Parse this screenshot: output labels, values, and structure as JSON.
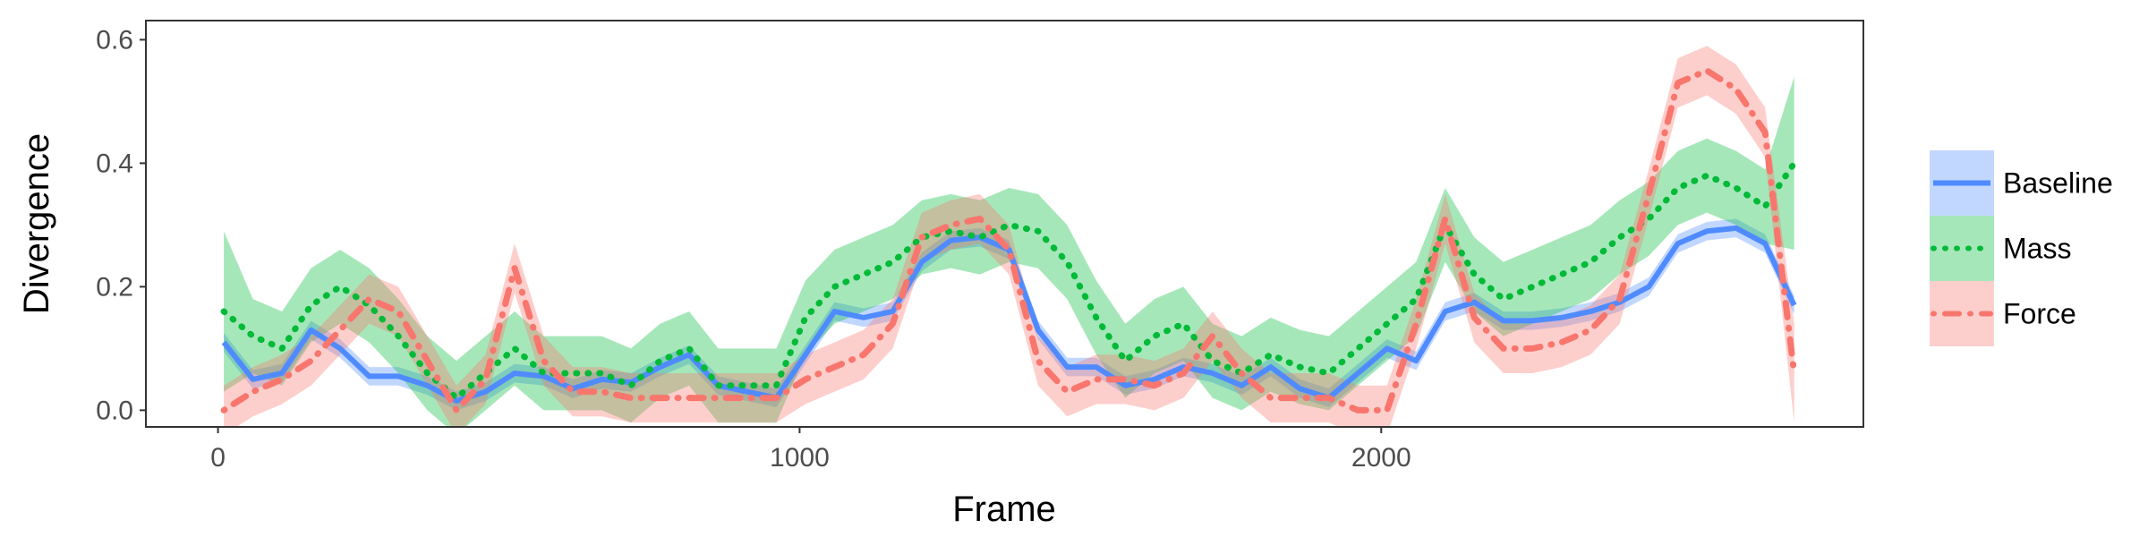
{
  "chart_data": {
    "type": "line",
    "x_label": "Frame",
    "y_label": "Divergence",
    "xlim": [
      -124,
      2829
    ],
    "ylim": [
      -0.027,
      0.631
    ],
    "xticks": [
      0,
      1000,
      2000
    ],
    "yticks": [
      {
        "value": 0,
        "label": "0.0"
      },
      0.2,
      0.4,
      0.6
    ],
    "grid": false,
    "legend": "right",
    "x": [
      10,
      60,
      110,
      160,
      210,
      260,
      310,
      360,
      410,
      460,
      510,
      560,
      610,
      660,
      710,
      760,
      810,
      860,
      910,
      960,
      1010,
      1060,
      1110,
      1160,
      1210,
      1260,
      1310,
      1360,
      1410,
      1460,
      1510,
      1560,
      1610,
      1660,
      1710,
      1760,
      1810,
      1860,
      1910,
      1960,
      2010,
      2060,
      2110,
      2160,
      2210,
      2260,
      2310,
      2360,
      2410,
      2460,
      2510,
      2560,
      2610,
      2660,
      2710
    ],
    "series": [
      {
        "name": "Baseline",
        "color": "#4F8BFF",
        "linestyle": "solid",
        "values": [
          0.11,
          0.05,
          0.06,
          0.13,
          0.1,
          0.055,
          0.055,
          0.04,
          0.015,
          0.03,
          0.06,
          0.055,
          0.035,
          0.05,
          0.045,
          0.07,
          0.09,
          0.04,
          0.03,
          0.02,
          0.09,
          0.16,
          0.15,
          0.16,
          0.24,
          0.275,
          0.28,
          0.26,
          0.13,
          0.07,
          0.07,
          0.04,
          0.05,
          0.07,
          0.06,
          0.04,
          0.07,
          0.035,
          0.02,
          0.06,
          0.1,
          0.08,
          0.16,
          0.175,
          0.145,
          0.145,
          0.15,
          0.16,
          0.175,
          0.2,
          0.27,
          0.29,
          0.295,
          0.27,
          0.17
        ],
        "lower": [
          0.095,
          0.035,
          0.045,
          0.115,
          0.085,
          0.04,
          0.04,
          0.025,
          0.0,
          0.015,
          0.045,
          0.04,
          0.02,
          0.035,
          0.03,
          0.055,
          0.075,
          0.025,
          0.015,
          0.005,
          0.075,
          0.145,
          0.135,
          0.145,
          0.225,
          0.26,
          0.265,
          0.245,
          0.115,
          0.055,
          0.055,
          0.025,
          0.035,
          0.055,
          0.045,
          0.025,
          0.055,
          0.02,
          0.005,
          0.045,
          0.085,
          0.065,
          0.145,
          0.16,
          0.13,
          0.13,
          0.135,
          0.145,
          0.16,
          0.185,
          0.255,
          0.275,
          0.28,
          0.255,
          0.155
        ],
        "upper": [
          0.125,
          0.065,
          0.075,
          0.145,
          0.115,
          0.07,
          0.07,
          0.055,
          0.03,
          0.045,
          0.075,
          0.07,
          0.05,
          0.065,
          0.06,
          0.085,
          0.105,
          0.055,
          0.045,
          0.035,
          0.105,
          0.175,
          0.165,
          0.175,
          0.255,
          0.29,
          0.295,
          0.275,
          0.145,
          0.085,
          0.085,
          0.055,
          0.065,
          0.085,
          0.075,
          0.055,
          0.085,
          0.05,
          0.035,
          0.075,
          0.115,
          0.095,
          0.175,
          0.19,
          0.16,
          0.16,
          0.165,
          0.175,
          0.19,
          0.215,
          0.285,
          0.305,
          0.31,
          0.285,
          0.185
        ]
      },
      {
        "name": "Mass",
        "color": "#00BA38",
        "linestyle": "dotted",
        "values": [
          0.16,
          0.12,
          0.1,
          0.17,
          0.2,
          0.17,
          0.12,
          0.06,
          0.02,
          0.06,
          0.1,
          0.06,
          0.06,
          0.06,
          0.04,
          0.08,
          0.1,
          0.04,
          0.04,
          0.04,
          0.15,
          0.2,
          0.22,
          0.24,
          0.28,
          0.29,
          0.28,
          0.3,
          0.29,
          0.24,
          0.15,
          0.08,
          0.12,
          0.14,
          0.08,
          0.06,
          0.09,
          0.07,
          0.06,
          0.1,
          0.14,
          0.18,
          0.3,
          0.22,
          0.18,
          0.2,
          0.22,
          0.24,
          0.28,
          0.31,
          0.36,
          0.38,
          0.36,
          0.33,
          0.4
        ],
        "lower": [
          0.03,
          0.06,
          0.04,
          0.11,
          0.14,
          0.11,
          0.06,
          0.0,
          -0.04,
          0.0,
          0.04,
          0.0,
          0.0,
          0.0,
          -0.02,
          0.02,
          0.04,
          -0.02,
          -0.02,
          -0.02,
          0.09,
          0.14,
          0.16,
          0.18,
          0.22,
          0.23,
          0.22,
          0.24,
          0.23,
          0.18,
          0.09,
          0.02,
          0.06,
          0.08,
          0.02,
          0.0,
          0.03,
          0.01,
          0.0,
          0.04,
          0.08,
          0.12,
          0.24,
          0.16,
          0.12,
          0.14,
          0.16,
          0.18,
          0.22,
          0.25,
          0.3,
          0.32,
          0.3,
          0.27,
          0.26
        ],
        "upper": [
          0.29,
          0.18,
          0.16,
          0.23,
          0.26,
          0.23,
          0.18,
          0.12,
          0.08,
          0.12,
          0.16,
          0.12,
          0.12,
          0.12,
          0.1,
          0.14,
          0.16,
          0.1,
          0.1,
          0.1,
          0.21,
          0.26,
          0.28,
          0.3,
          0.34,
          0.35,
          0.34,
          0.36,
          0.35,
          0.3,
          0.21,
          0.14,
          0.18,
          0.2,
          0.14,
          0.12,
          0.15,
          0.13,
          0.12,
          0.16,
          0.2,
          0.24,
          0.36,
          0.28,
          0.24,
          0.26,
          0.28,
          0.3,
          0.34,
          0.37,
          0.42,
          0.44,
          0.42,
          0.39,
          0.54
        ]
      },
      {
        "name": "Force",
        "color": "#F8766D",
        "linestyle": "dashdot",
        "values": [
          0.0,
          0.03,
          0.05,
          0.08,
          0.13,
          0.18,
          0.16,
          0.08,
          0.0,
          0.05,
          0.23,
          0.08,
          0.03,
          0.03,
          0.02,
          0.02,
          0.02,
          0.02,
          0.02,
          0.02,
          0.05,
          0.07,
          0.09,
          0.14,
          0.28,
          0.3,
          0.31,
          0.26,
          0.08,
          0.03,
          0.05,
          0.05,
          0.04,
          0.06,
          0.12,
          0.06,
          0.02,
          0.02,
          0.02,
          0.0,
          0.0,
          0.14,
          0.31,
          0.15,
          0.1,
          0.1,
          0.11,
          0.13,
          0.18,
          0.35,
          0.53,
          0.55,
          0.52,
          0.45,
          0.06
        ],
        "lower": [
          -0.04,
          -0.01,
          0.01,
          0.04,
          0.09,
          0.14,
          0.12,
          0.04,
          -0.04,
          0.01,
          0.19,
          0.04,
          -0.01,
          -0.01,
          -0.02,
          -0.02,
          -0.02,
          -0.02,
          -0.02,
          -0.02,
          0.01,
          0.03,
          0.05,
          0.1,
          0.24,
          0.26,
          0.27,
          0.22,
          0.04,
          -0.01,
          0.01,
          0.01,
          0.0,
          0.02,
          0.08,
          0.02,
          -0.02,
          -0.02,
          -0.02,
          -0.04,
          -0.04,
          0.1,
          0.27,
          0.11,
          0.06,
          0.06,
          0.07,
          0.09,
          0.14,
          0.31,
          0.49,
          0.51,
          0.48,
          0.41,
          -0.02
        ],
        "upper": [
          0.04,
          0.07,
          0.09,
          0.12,
          0.17,
          0.22,
          0.2,
          0.12,
          0.04,
          0.09,
          0.27,
          0.12,
          0.07,
          0.07,
          0.06,
          0.06,
          0.06,
          0.06,
          0.06,
          0.06,
          0.09,
          0.11,
          0.13,
          0.18,
          0.32,
          0.34,
          0.35,
          0.3,
          0.12,
          0.07,
          0.09,
          0.09,
          0.08,
          0.1,
          0.16,
          0.1,
          0.06,
          0.06,
          0.06,
          0.04,
          0.04,
          0.18,
          0.35,
          0.19,
          0.14,
          0.14,
          0.15,
          0.17,
          0.22,
          0.39,
          0.57,
          0.59,
          0.56,
          0.49,
          0.14
        ]
      }
    ]
  }
}
